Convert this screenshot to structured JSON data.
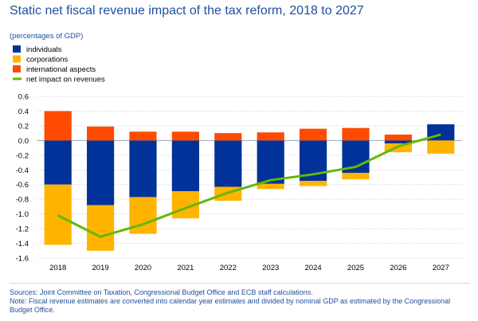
{
  "title": "Static net fiscal revenue impact of the tax reform, 2018 to 2027",
  "subtitle": "(percentages of GDP)",
  "colors": {
    "individuals": "#003299",
    "corporations": "#ffb400",
    "international": "#ff4b00",
    "net": "#65b800",
    "text": "#1f4fa0"
  },
  "chart_data": {
    "type": "bar",
    "stacked": true,
    "categories": [
      "2018",
      "2019",
      "2020",
      "2021",
      "2022",
      "2023",
      "2024",
      "2025",
      "2026",
      "2027"
    ],
    "series": [
      {
        "name": "individuals",
        "kind": "bar",
        "values": [
          -0.6,
          -0.88,
          -0.77,
          -0.69,
          -0.63,
          -0.59,
          -0.55,
          -0.44,
          -0.04,
          0.22
        ]
      },
      {
        "name": "corporations",
        "kind": "bar",
        "values": [
          -0.82,
          -0.62,
          -0.5,
          -0.37,
          -0.19,
          -0.07,
          -0.07,
          -0.09,
          -0.12,
          -0.18
        ]
      },
      {
        "name": "international aspects",
        "kind": "bar",
        "values": [
          0.4,
          0.19,
          0.12,
          0.12,
          0.1,
          0.11,
          0.16,
          0.17,
          0.08,
          0.0
        ]
      },
      {
        "name": "net impact on revenues",
        "kind": "line",
        "values": [
          -1.02,
          -1.31,
          -1.14,
          -0.92,
          -0.71,
          -0.54,
          -0.46,
          -0.36,
          -0.08,
          0.08
        ]
      }
    ],
    "ylim": [
      -1.6,
      0.6
    ],
    "yticks": [
      0.6,
      0.4,
      0.2,
      0.0,
      -0.2,
      -0.4,
      -0.6,
      -0.8,
      -1.0,
      -1.2,
      -1.4,
      -1.6
    ],
    "ytick_labels": [
      "0.6",
      "0.4",
      "0.2",
      "0.0",
      "-0.2",
      "-0.4",
      "-0.6",
      "-0.8",
      "-1.0",
      "-1.2",
      "-1.4",
      "-1.6"
    ],
    "grid": true,
    "legend_position": "top-left"
  },
  "footer": {
    "sources": "Sources: Joint Committee on Taxation, Congressional Budget Office and ECB staff calculations.",
    "note": "Note: Fiscal revenue estimates are converted into calendar year estimates and divided by nominal GDP as estimated by the Congressional Budget Office."
  }
}
